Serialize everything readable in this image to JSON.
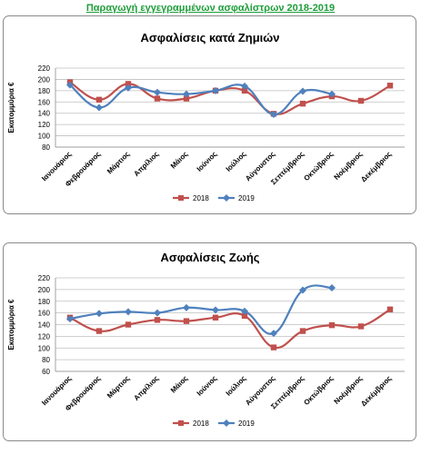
{
  "page": {
    "title": "Παραγωγή εγγεγραμμένων ασφαλίστρων 2018-2019"
  },
  "chart_data": [
    {
      "type": "line",
      "title": "Ασφαλίσεις κατά Ζημιών",
      "ylabel": "Εκατομμύρια  €",
      "xlabel": "",
      "ylim": [
        80,
        220
      ],
      "yticks": [
        80,
        100,
        120,
        140,
        160,
        180,
        200,
        220
      ],
      "grid": true,
      "legend": "bottom",
      "categories": [
        "Ιανουάριος",
        "Φεβρουάριος",
        "Μάρτιος",
        "Απρίλιος",
        "Μάιος",
        "Ιούνιος",
        "Ιούλιος",
        "Αύγουστος",
        "Σεπτέμβριος",
        "Οκτώβριος",
        "Νοέμβριος",
        "Δεκέμβριος"
      ],
      "series": [
        {
          "name": "2018",
          "color": "#c0504d",
          "marker": "square",
          "values": [
            195,
            164,
            192,
            166,
            166,
            180,
            180,
            139,
            157,
            170,
            162,
            189
          ]
        },
        {
          "name": "2019",
          "color": "#4f81bd",
          "marker": "diamond",
          "values": [
            190,
            150,
            185,
            177,
            174,
            180,
            188,
            138,
            179,
            174,
            null,
            null
          ]
        }
      ]
    },
    {
      "type": "line",
      "title": "Ασφαλίσεις Ζωής",
      "ylabel": "Εκατομμύρια  €",
      "xlabel": "",
      "ylim": [
        60,
        220
      ],
      "yticks": [
        60,
        80,
        100,
        120,
        140,
        160,
        180,
        200,
        220
      ],
      "grid": true,
      "legend": "bottom",
      "categories": [
        "Ιανουάριος",
        "Φεβρουάριος",
        "Μάρτιος",
        "Απρίλιος",
        "Μάιος",
        "Ιούνιος",
        "Ιούλιος",
        "Αύγουστος",
        "Σεπτέμβριος",
        "Οκτώβριος",
        "Νοέμβριος",
        "Δεκέμβριος"
      ],
      "series": [
        {
          "name": "2018",
          "color": "#c0504d",
          "marker": "square",
          "values": [
            152,
            129,
            140,
            148,
            146,
            152,
            155,
            101,
            129,
            139,
            137,
            166
          ]
        },
        {
          "name": "2019",
          "color": "#4f81bd",
          "marker": "diamond",
          "values": [
            150,
            159,
            162,
            160,
            169,
            165,
            163,
            125,
            199,
            203,
            null,
            null
          ]
        }
      ]
    }
  ]
}
